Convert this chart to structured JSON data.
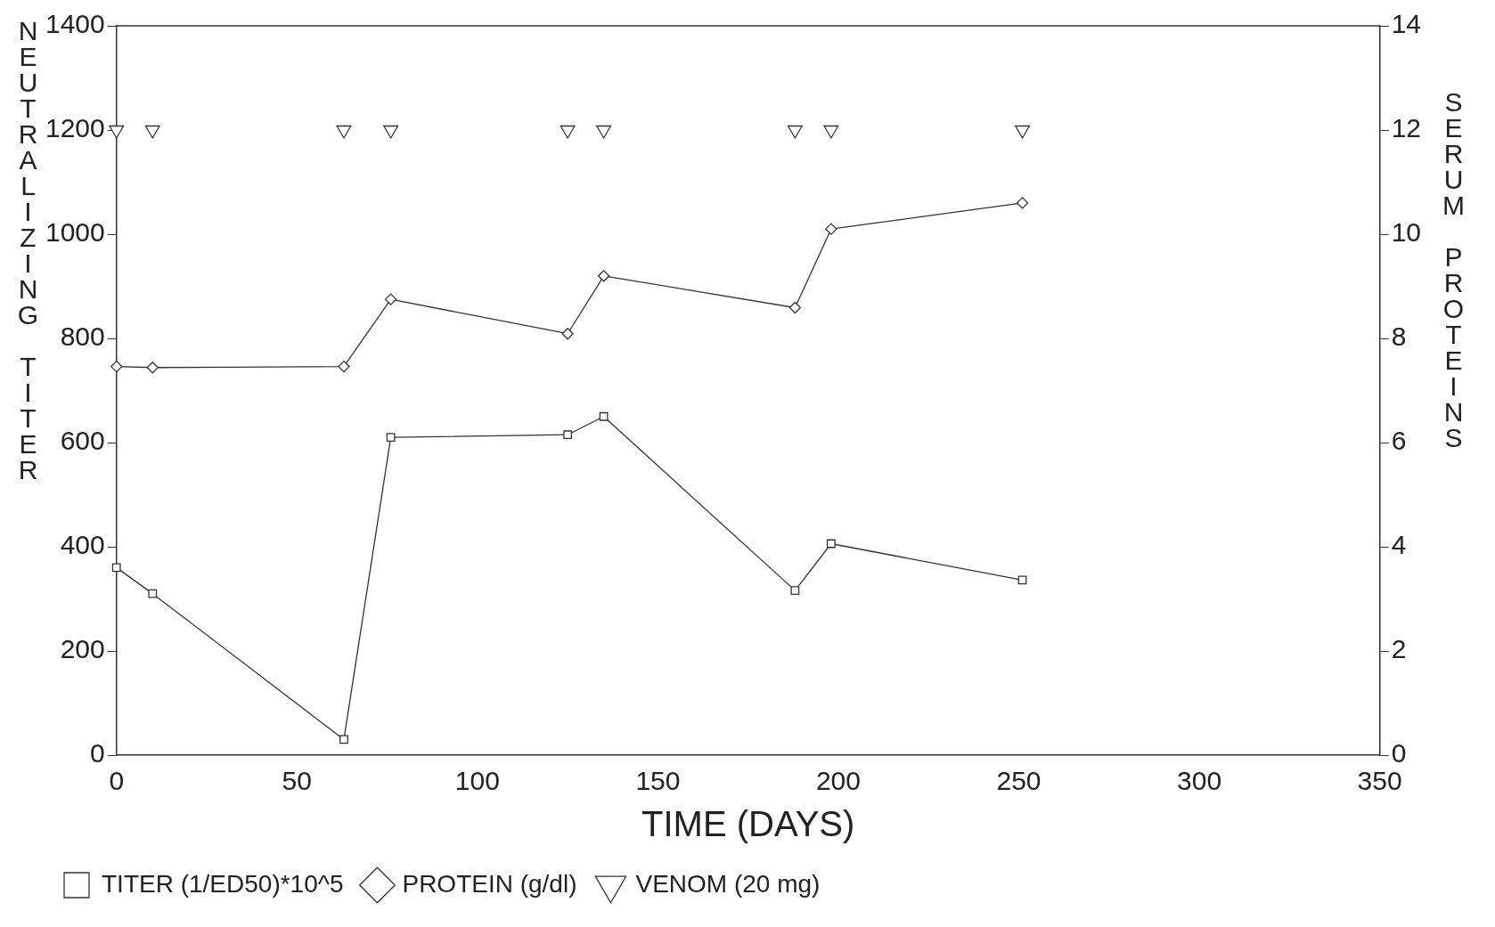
{
  "chart_data": {
    "type": "line",
    "xlabel": "TIME (DAYS)",
    "ylabel": "NEUTRALIZING TITER",
    "y2label": "SERUM PROTEINS",
    "x": [
      0,
      10,
      63,
      76,
      125,
      135,
      188,
      198,
      251
    ],
    "xlim": [
      0,
      350
    ],
    "xticks": [
      0,
      50,
      100,
      150,
      200,
      250,
      300,
      350
    ],
    "ylim": [
      0,
      1400
    ],
    "yticks": [
      0,
      200,
      400,
      600,
      800,
      1000,
      1200,
      1400
    ],
    "y2lim": [
      0,
      14
    ],
    "y2ticks": [
      0,
      2,
      4,
      6,
      8,
      10,
      12,
      14
    ],
    "grid": false,
    "legend": "bottom",
    "series": [
      {
        "name": "TITER (1/ED50)*10^5",
        "type": "line",
        "marker": "square",
        "color": "#333333",
        "values": [
          360,
          310,
          30,
          610,
          615,
          650,
          316,
          406,
          336
        ]
      },
      {
        "name": "PROTEIN (g/dl)",
        "type": "line",
        "marker": "diamond",
        "axis": "y2",
        "color": "#333333",
        "values": [
          7.46,
          7.44,
          7.46,
          8.75,
          8.09,
          9.2,
          8.59,
          10.1,
          10.6
        ]
      },
      {
        "name": "VENOM (20 mg)",
        "type": "scatter",
        "marker": "triangle",
        "axis": "y2",
        "color": "#333333",
        "values": [
          12,
          12,
          12,
          12,
          12,
          12,
          12,
          12,
          12
        ]
      }
    ]
  }
}
